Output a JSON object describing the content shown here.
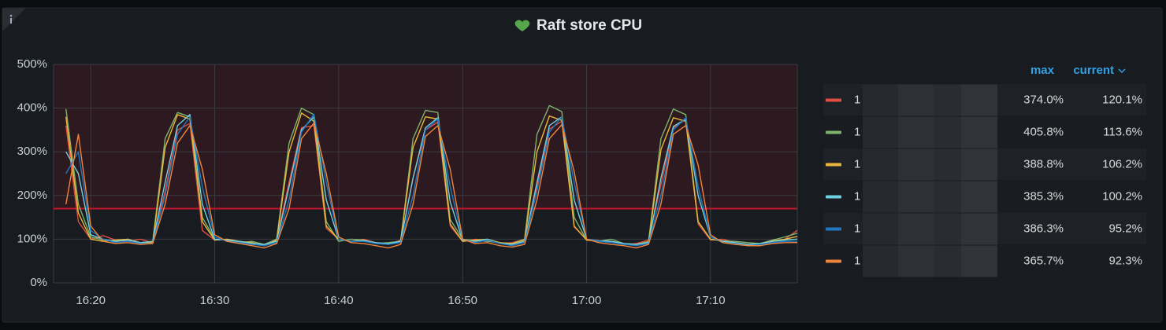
{
  "chart_data": {
    "type": "line",
    "title": "Raft store CPU",
    "x": [
      "16:18",
      "16:19",
      "16:20",
      "16:21",
      "16:22",
      "16:23",
      "16:24",
      "16:25",
      "16:26",
      "16:27",
      "16:28",
      "16:29",
      "16:30",
      "16:31",
      "16:32",
      "16:33",
      "16:34",
      "16:35",
      "16:36",
      "16:37",
      "16:38",
      "16:39",
      "16:40",
      "16:41",
      "16:42",
      "16:43",
      "16:44",
      "16:45",
      "16:46",
      "16:47",
      "16:48",
      "16:49",
      "16:50",
      "16:51",
      "16:52",
      "16:53",
      "16:54",
      "16:55",
      "16:56",
      "16:57",
      "16:58",
      "16:59",
      "17:00",
      "17:01",
      "17:02",
      "17:03",
      "17:04",
      "17:05",
      "17:06",
      "17:07",
      "17:08",
      "17:09",
      "17:10",
      "17:11",
      "17:12",
      "17:13",
      "17:14",
      "17:15",
      "17:16",
      "17:17"
    ],
    "xlim": [
      "16:17",
      "17:17"
    ],
    "xticks": [
      "16:20",
      "16:30",
      "16:40",
      "16:50",
      "17:00",
      "17:10"
    ],
    "ylim": [
      0,
      500
    ],
    "yticks": [
      {
        "value": 0,
        "label": "0%"
      },
      {
        "value": 100,
        "label": "100%"
      },
      {
        "value": 200,
        "label": "200%"
      },
      {
        "value": 300,
        "label": "300%"
      },
      {
        "value": 400,
        "label": "400%"
      },
      {
        "value": 500,
        "label": "500%"
      }
    ],
    "grid": true,
    "threshold": {
      "value": 170,
      "color": "#c4162a"
    },
    "legend_columns": [
      "max",
      "current"
    ],
    "series": [
      {
        "name": "1",
        "color": "#e24d42",
        "values": [
          360,
          140,
          100,
          108,
          98,
          95,
          100,
          92,
          210,
          350,
          365,
          120,
          98,
          100,
          95,
          90,
          85,
          100,
          230,
          355,
          360,
          125,
          100,
          95,
          100,
          92,
          88,
          98,
          240,
          350,
          368,
          130,
          95,
          100,
          97,
          90,
          92,
          100,
          220,
          352,
          370,
          128,
          100,
          96,
          95,
          88,
          90,
          98,
          225,
          355,
          374,
          135,
          98,
          100,
          92,
          88,
          90,
          95,
          100,
          120.1
        ],
        "stats": [
          374.0,
          120.1
        ],
        "stats_labels": [
          "374.0%",
          "120.1%"
        ]
      },
      {
        "name": "1",
        "color": "#7eb26d",
        "values": [
          398,
          180,
          105,
          98,
          95,
          100,
          92,
          95,
          330,
          390,
          380,
          150,
          100,
          98,
          92,
          95,
          88,
          100,
          320,
          400,
          385,
          140,
          95,
          100,
          98,
          90,
          92,
          95,
          330,
          395,
          390,
          145,
          100,
          97,
          95,
          92,
          90,
          100,
          340,
          405.8,
          392,
          150,
          98,
          95,
          100,
          90,
          88,
          95,
          330,
          398,
          385,
          140,
          100,
          96,
          95,
          92,
          90,
          98,
          105,
          113.6
        ],
        "stats": [
          405.8,
          113.6
        ],
        "stats_labels": [
          "405.8%",
          "113.6%"
        ]
      },
      {
        "name": "1",
        "color": "#eab839",
        "values": [
          380,
          160,
          100,
          95,
          98,
          100,
          90,
          92,
          310,
          385,
          375,
          140,
          98,
          100,
          95,
          92,
          85,
          98,
          300,
          388.8,
          370,
          130,
          100,
          95,
          98,
          90,
          88,
          96,
          310,
          380,
          375,
          135,
          95,
          98,
          100,
          92,
          90,
          98,
          300,
          382,
          372,
          130,
          98,
          96,
          95,
          90,
          88,
          92,
          305,
          378,
          370,
          140,
          100,
          95,
          92,
          88,
          90,
          96,
          100,
          106.2
        ],
        "stats": [
          388.8,
          106.2
        ],
        "stats_labels": [
          "388.8%",
          "106.2%"
        ]
      },
      {
        "name": "1",
        "color": "#6ed0e0",
        "values": [
          300,
          250,
          110,
          100,
          95,
          98,
          92,
          95,
          230,
          360,
          385.3,
          180,
          100,
          98,
          95,
          90,
          88,
          95,
          220,
          350,
          380,
          190,
          100,
          95,
          97,
          92,
          90,
          95,
          240,
          355,
          378,
          185,
          98,
          95,
          100,
          90,
          88,
          95,
          230,
          360,
          380,
          190,
          100,
          96,
          95,
          90,
          88,
          92,
          240,
          358,
          375,
          200,
          105,
          95,
          92,
          88,
          90,
          95,
          98,
          100.2
        ],
        "stats": [
          385.3,
          100.2
        ],
        "stats_labels": [
          "385.3%",
          "100.2%"
        ]
      },
      {
        "name": "1",
        "color": "#1f78c1",
        "values": [
          250,
          300,
          120,
          100,
          92,
          95,
          90,
          90,
          200,
          340,
          380,
          220,
          105,
          95,
          92,
          88,
          85,
          92,
          190,
          345,
          386.3,
          230,
          100,
          95,
          95,
          90,
          88,
          92,
          200,
          350,
          375,
          220,
          100,
          92,
          98,
          90,
          85,
          92,
          210,
          345,
          380,
          230,
          100,
          95,
          92,
          88,
          85,
          90,
          200,
          350,
          378,
          220,
          105,
          92,
          90,
          85,
          88,
          92,
          95,
          95.2
        ],
        "stats": [
          386.3,
          95.2
        ],
        "stats_labels": [
          "386.3%",
          "95.2%"
        ]
      },
      {
        "name": "1",
        "color": "#ef843c",
        "values": [
          180,
          340,
          130,
          95,
          90,
          92,
          88,
          90,
          180,
          320,
          360,
          260,
          110,
          95,
          90,
          85,
          80,
          90,
          170,
          330,
          365.7,
          250,
          105,
          92,
          90,
          85,
          80,
          88,
          180,
          335,
          360,
          260,
          100,
          90,
          92,
          85,
          82,
          88,
          190,
          330,
          362,
          255,
          100,
          92,
          88,
          85,
          80,
          88,
          180,
          340,
          360,
          270,
          110,
          92,
          88,
          85,
          85,
          90,
          92,
          92.3
        ],
        "stats": [
          365.7,
          92.3
        ],
        "stats_labels": [
          "365.7%",
          "92.3%"
        ]
      }
    ]
  }
}
